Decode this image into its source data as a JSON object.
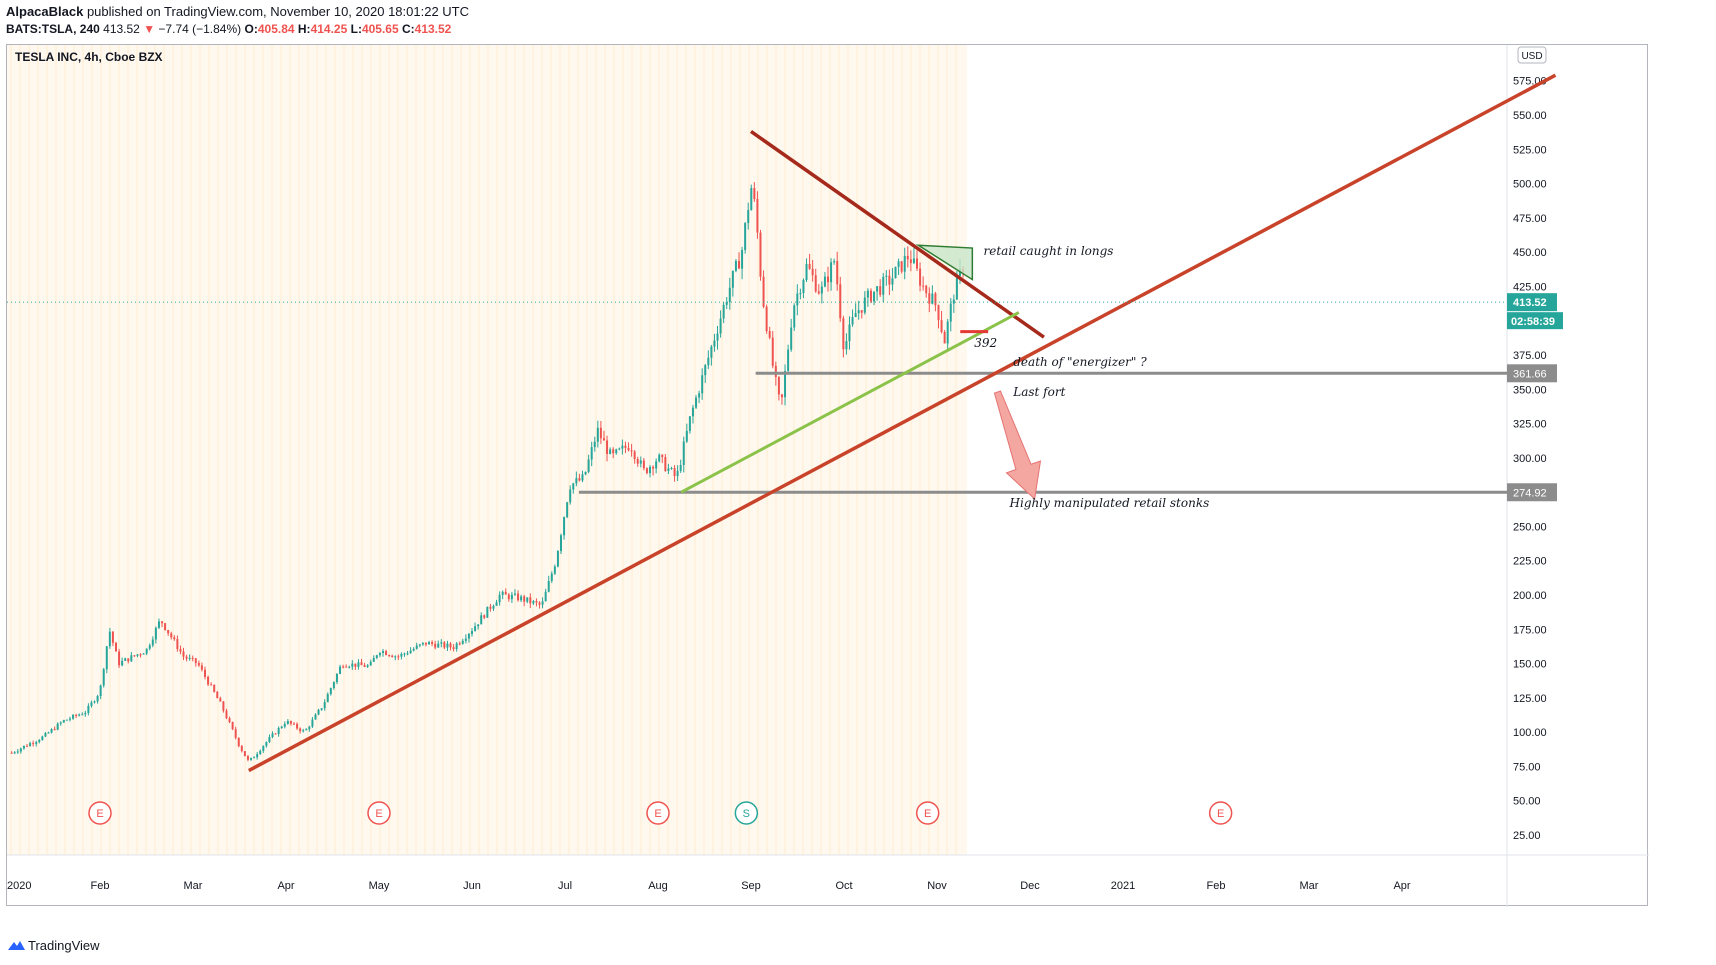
{
  "header": {
    "author": "AlpacaBlack",
    "published_text": "published on TradingView.com, November 10, 2020 18:01:22 UTC",
    "symbol": "BATS:TSLA, 240",
    "last": "413.52",
    "arrow": "▼",
    "change": "−7.74 (−1.84%)",
    "o_label": "O:",
    "o_value": "405.84",
    "h_label": "H:",
    "h_value": "414.25",
    "l_label": "L:",
    "l_value": "405.65",
    "c_label": "C:",
    "c_value": "413.52"
  },
  "footer": {
    "brand": "TradingView"
  },
  "colors": {
    "up": "#26a69a",
    "down": "#ef5350",
    "trend_red": "#c8432a",
    "trend_dark": "#a52a1b",
    "trend_green": "#8bc34a",
    "level_grey": "#8c8c8c",
    "triangle_fill": "#c8e6c9",
    "triangle_stroke": "#2e7d32",
    "arrow_fill": "#f4a7a0",
    "session_band": "#fff3e0"
  },
  "chart_data": {
    "type": "candlestick",
    "title": "TESLA INC, 4h, Cboe BZX",
    "currency": "USD",
    "ylim": [
      25,
      585
    ],
    "y_ticks": [
      575,
      550,
      525,
      500,
      475,
      450,
      425,
      375,
      350,
      325,
      300,
      250,
      225,
      200,
      175,
      150,
      125,
      100,
      75,
      50,
      25
    ],
    "y_tick_labels": [
      "575.00",
      "550.00",
      "525.00",
      "500.00",
      "475.00",
      "450.00",
      "425.00",
      "375.00",
      "350.00",
      "325.00",
      "300.00",
      "250.00",
      "225.00",
      "200.00",
      "175.00",
      "150.00",
      "125.00",
      "100.00",
      "75.00",
      "50.00",
      "25.00"
    ],
    "x_labels": [
      {
        "label": "2020",
        "month": 0
      },
      {
        "label": "Feb",
        "month": 1
      },
      {
        "label": "Mar",
        "month": 2
      },
      {
        "label": "Apr",
        "month": 3
      },
      {
        "label": "May",
        "month": 4
      },
      {
        "label": "Jun",
        "month": 5
      },
      {
        "label": "Jul",
        "month": 6
      },
      {
        "label": "Aug",
        "month": 7
      },
      {
        "label": "Sep",
        "month": 8
      },
      {
        "label": "Oct",
        "month": 9
      },
      {
        "label": "Nov",
        "month": 10
      },
      {
        "label": "Dec",
        "month": 11
      },
      {
        "label": "2021",
        "month": 12
      },
      {
        "label": "Feb",
        "month": 13
      },
      {
        "label": "Mar",
        "month": 14
      },
      {
        "label": "Apr",
        "month": 15
      }
    ],
    "price_path": [
      {
        "t": 0.05,
        "v": 85
      },
      {
        "t": 0.4,
        "v": 97
      },
      {
        "t": 0.6,
        "v": 108
      },
      {
        "t": 0.85,
        "v": 115
      },
      {
        "t": 1.0,
        "v": 130
      },
      {
        "t": 1.1,
        "v": 175
      },
      {
        "t": 1.2,
        "v": 150
      },
      {
        "t": 1.5,
        "v": 160
      },
      {
        "t": 1.65,
        "v": 182
      },
      {
        "t": 1.9,
        "v": 155
      },
      {
        "t": 2.05,
        "v": 150
      },
      {
        "t": 2.3,
        "v": 120
      },
      {
        "t": 2.5,
        "v": 90
      },
      {
        "t": 2.6,
        "v": 78
      },
      {
        "t": 2.75,
        "v": 90
      },
      {
        "t": 3.0,
        "v": 108
      },
      {
        "t": 3.2,
        "v": 100
      },
      {
        "t": 3.4,
        "v": 120
      },
      {
        "t": 3.6,
        "v": 150
      },
      {
        "t": 3.9,
        "v": 148
      },
      {
        "t": 4.0,
        "v": 160
      },
      {
        "t": 4.2,
        "v": 155
      },
      {
        "t": 4.5,
        "v": 165
      },
      {
        "t": 4.8,
        "v": 162
      },
      {
        "t": 5.0,
        "v": 175
      },
      {
        "t": 5.3,
        "v": 200
      },
      {
        "t": 5.5,
        "v": 198
      },
      {
        "t": 5.75,
        "v": 192
      },
      {
        "t": 5.9,
        "v": 225
      },
      {
        "t": 6.05,
        "v": 280
      },
      {
        "t": 6.2,
        "v": 285
      },
      {
        "t": 6.35,
        "v": 320
      },
      {
        "t": 6.5,
        "v": 300
      },
      {
        "t": 6.7,
        "v": 310
      },
      {
        "t": 6.85,
        "v": 290
      },
      {
        "t": 7.0,
        "v": 300
      },
      {
        "t": 7.2,
        "v": 285
      },
      {
        "t": 7.35,
        "v": 330
      },
      {
        "t": 7.55,
        "v": 375
      },
      {
        "t": 7.75,
        "v": 420
      },
      {
        "t": 7.9,
        "v": 450
      },
      {
        "t": 8.0,
        "v": 498
      },
      {
        "t": 8.05,
        "v": 480
      },
      {
        "t": 8.12,
        "v": 420
      },
      {
        "t": 8.25,
        "v": 360
      },
      {
        "t": 8.32,
        "v": 335
      },
      {
        "t": 8.45,
        "v": 410
      },
      {
        "t": 8.6,
        "v": 440
      },
      {
        "t": 8.75,
        "v": 420
      },
      {
        "t": 8.9,
        "v": 445
      },
      {
        "t": 9.0,
        "v": 380
      },
      {
        "t": 9.12,
        "v": 405
      },
      {
        "t": 9.3,
        "v": 420
      },
      {
        "t": 9.5,
        "v": 430
      },
      {
        "t": 9.7,
        "v": 448
      },
      {
        "t": 9.85,
        "v": 425
      },
      {
        "t": 10.0,
        "v": 410
      },
      {
        "t": 10.08,
        "v": 385
      },
      {
        "t": 10.18,
        "v": 420
      },
      {
        "t": 10.28,
        "v": 440
      },
      {
        "t": 10.3,
        "v": 413.52
      }
    ],
    "last_price": 413.52,
    "last_price_label": "413.52",
    "countdown_label": "02:58:39",
    "levels": [
      {
        "value": 361.66,
        "label": "361.66",
        "from_month": 8.05
      },
      {
        "value": 274.92,
        "label": "274.92",
        "from_month": 6.15
      }
    ],
    "trendlines": [
      {
        "name": "long-term-support",
        "from": {
          "t": 2.6,
          "v": 72
        },
        "to": {
          "t": 16.65,
          "v": 579
        }
      },
      {
        "name": "descending-resistance",
        "from": {
          "t": 8.0,
          "v": 538
        },
        "to": {
          "t": 11.15,
          "v": 388
        }
      },
      {
        "name": "rising-support",
        "from": {
          "t": 7.25,
          "v": 275
        },
        "to": {
          "t": 10.88,
          "v": 406
        }
      },
      {
        "name": "level-392-marker",
        "from": {
          "t": 10.25,
          "v": 392
        },
        "to": {
          "t": 10.55,
          "v": 392
        }
      }
    ],
    "triangle": [
      {
        "t": 9.8,
        "v": 455
      },
      {
        "t": 10.38,
        "v": 453
      },
      {
        "t": 10.38,
        "v": 430
      }
    ],
    "down_arrow": {
      "from": {
        "t": 10.65,
        "v": 348
      },
      "to": {
        "t": 11.05,
        "v": 270
      }
    },
    "annotations": [
      {
        "text": "retail caught in longs",
        "t": 10.5,
        "v": 448
      },
      {
        "text": "392",
        "t": 10.4,
        "v": 381
      },
      {
        "text": "death of \"energizer\" ?",
        "t": 10.82,
        "v": 367
      },
      {
        "text": "Last fort",
        "t": 10.82,
        "v": 345
      },
      {
        "text": "Highly manipulated retail stonks",
        "t": 10.78,
        "v": 264
      }
    ],
    "events": [
      {
        "label": "E",
        "month": 1.0,
        "color": "#ef5350"
      },
      {
        "label": "E",
        "month": 4.0,
        "color": "#ef5350"
      },
      {
        "label": "E",
        "month": 7.0,
        "color": "#ef5350"
      },
      {
        "label": "S",
        "month": 7.95,
        "color": "#26a69a"
      },
      {
        "label": "E",
        "month": 9.9,
        "color": "#ef5350"
      },
      {
        "label": "E",
        "month": 13.05,
        "color": "#ef5350"
      }
    ]
  }
}
